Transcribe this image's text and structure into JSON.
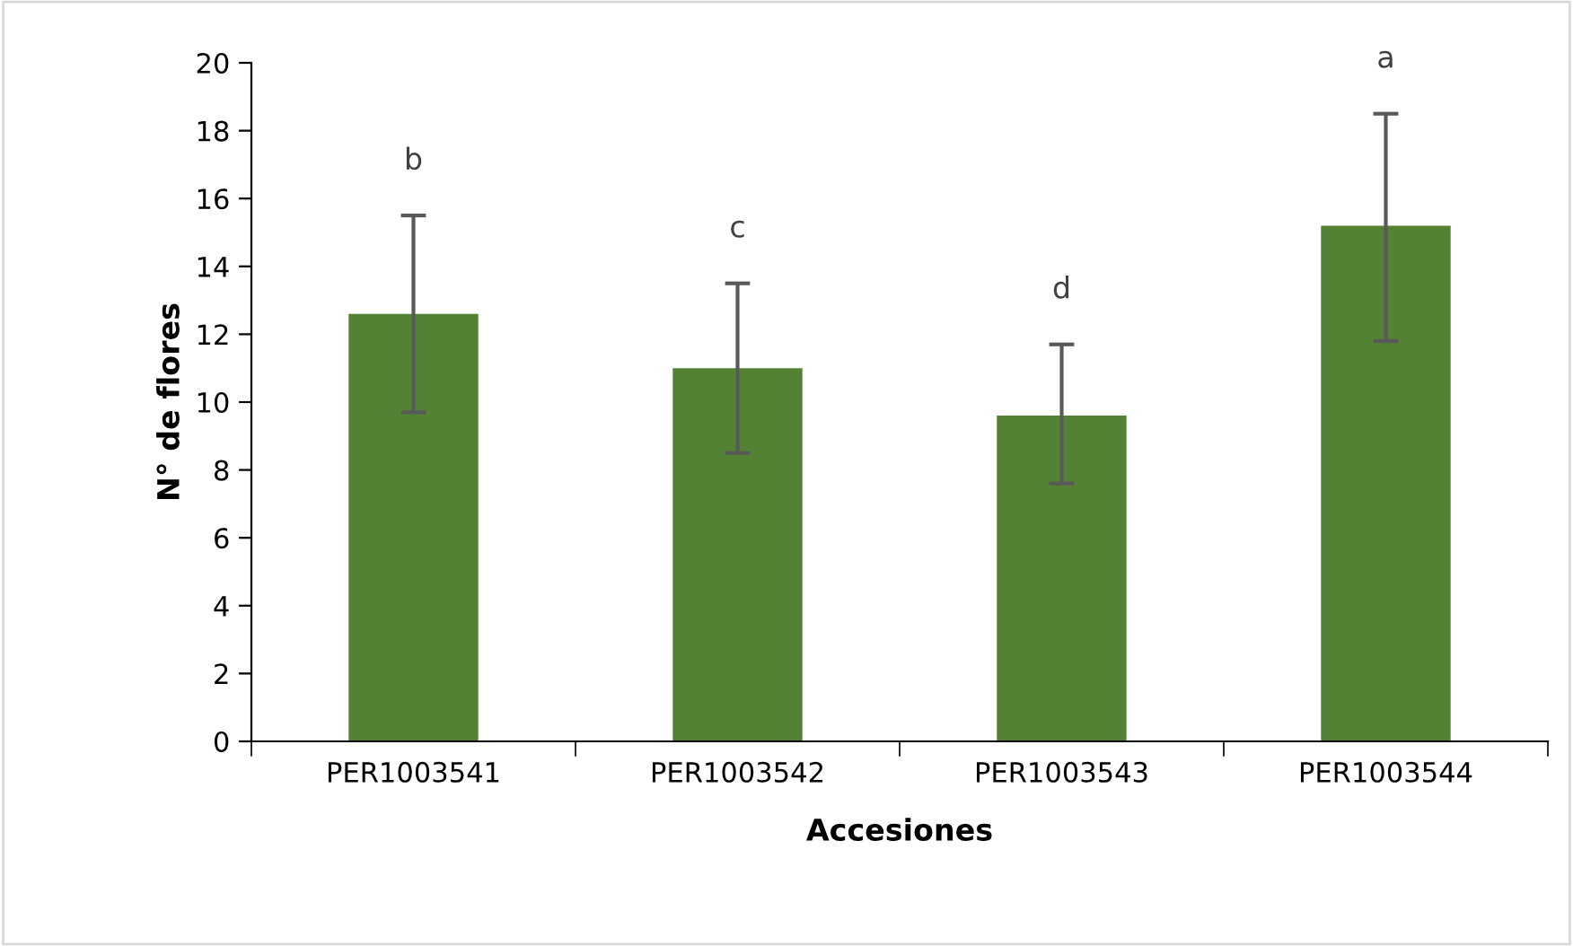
{
  "chart_data": {
    "type": "bar",
    "xlabel": "Accesiones",
    "ylabel": "N° de flores",
    "categories": [
      "PER1003541",
      "PER1003542",
      "PER1003543",
      "PER1003544"
    ],
    "values": [
      12.6,
      11.0,
      9.6,
      15.2
    ],
    "errors": [
      [
        9.7,
        15.5
      ],
      [
        8.5,
        13.5
      ],
      [
        7.6,
        11.7
      ],
      [
        11.8,
        18.5
      ]
    ],
    "color": "#548235",
    "ylim": [
      0,
      20
    ],
    "yticks": [
      0,
      2,
      4,
      6,
      8,
      10,
      12,
      14,
      16,
      18,
      20
    ],
    "grid": false,
    "legend": false,
    "annotations": [
      "b",
      "c",
      "d",
      "a"
    ]
  }
}
